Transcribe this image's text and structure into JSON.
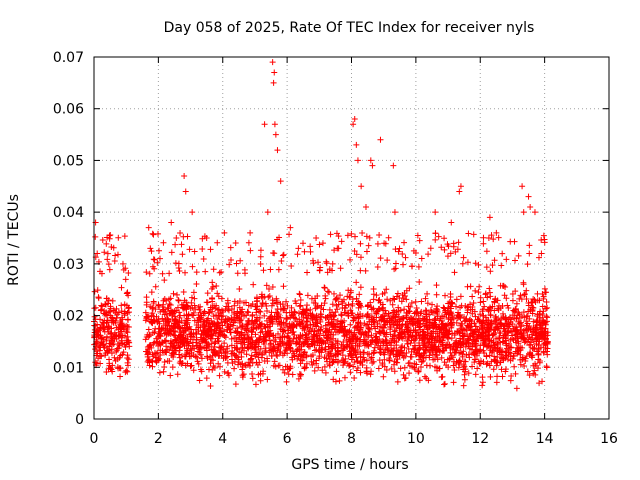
{
  "chart_data": {
    "type": "scatter",
    "title": "Day 058 of 2025, Rate Of TEC Index for receiver nyls",
    "xlabel": "GPS time / hours",
    "ylabel": "ROTI / TECUs",
    "xlim": [
      0,
      16
    ],
    "ylim": [
      0,
      0.07
    ],
    "xticks": [
      0,
      2,
      4,
      6,
      8,
      10,
      12,
      14,
      16
    ],
    "yticks": [
      0,
      0.01,
      0.02,
      0.03,
      0.04,
      0.05,
      0.06,
      0.07
    ],
    "xtick_labels": [
      "0",
      "2",
      "4",
      "6",
      "8",
      "10",
      "12",
      "14",
      "16"
    ],
    "ytick_labels": [
      "0",
      "0.01",
      "0.02",
      "0.03",
      "0.04",
      "0.05",
      "0.06",
      "0.07"
    ],
    "grid": true,
    "marker": "+",
    "color": "#ff0000",
    "series": [
      {
        "name": "ROTI",
        "segments": [
          [
            0.0,
            1.1
          ],
          [
            1.6,
            14.1
          ]
        ],
        "baseline": [
          0.005,
          0.028
        ],
        "x": [
          0.05,
          0.1,
          0.9,
          1.7,
          1.75,
          2.05,
          2.4,
          2.8,
          2.85,
          3.05,
          3.5,
          4.05,
          4.85,
          5.3,
          5.4,
          5.55,
          5.58,
          5.6,
          5.62,
          5.65,
          5.7,
          5.8,
          6.1,
          6.35,
          6.9,
          7.6,
          8.05,
          8.1,
          8.15,
          8.2,
          8.3,
          8.45,
          8.6,
          8.65,
          8.9,
          9.3,
          9.35,
          10.6,
          11.1,
          11.35,
          11.4,
          12.3,
          12.5,
          13.3,
          13.35,
          13.5,
          13.55,
          13.7,
          13.9
        ],
        "y": [
          0.038,
          0.032,
          0.03,
          0.037,
          0.033,
          0.031,
          0.038,
          0.047,
          0.044,
          0.04,
          0.035,
          0.036,
          0.036,
          0.057,
          0.04,
          0.069,
          0.065,
          0.067,
          0.057,
          0.055,
          0.052,
          0.046,
          0.037,
          0.033,
          0.035,
          0.033,
          0.057,
          0.058,
          0.053,
          0.05,
          0.045,
          0.041,
          0.05,
          0.049,
          0.054,
          0.049,
          0.04,
          0.04,
          0.038,
          0.044,
          0.045,
          0.039,
          0.036,
          0.045,
          0.04,
          0.043,
          0.041,
          0.04,
          0.032
        ]
      }
    ]
  }
}
